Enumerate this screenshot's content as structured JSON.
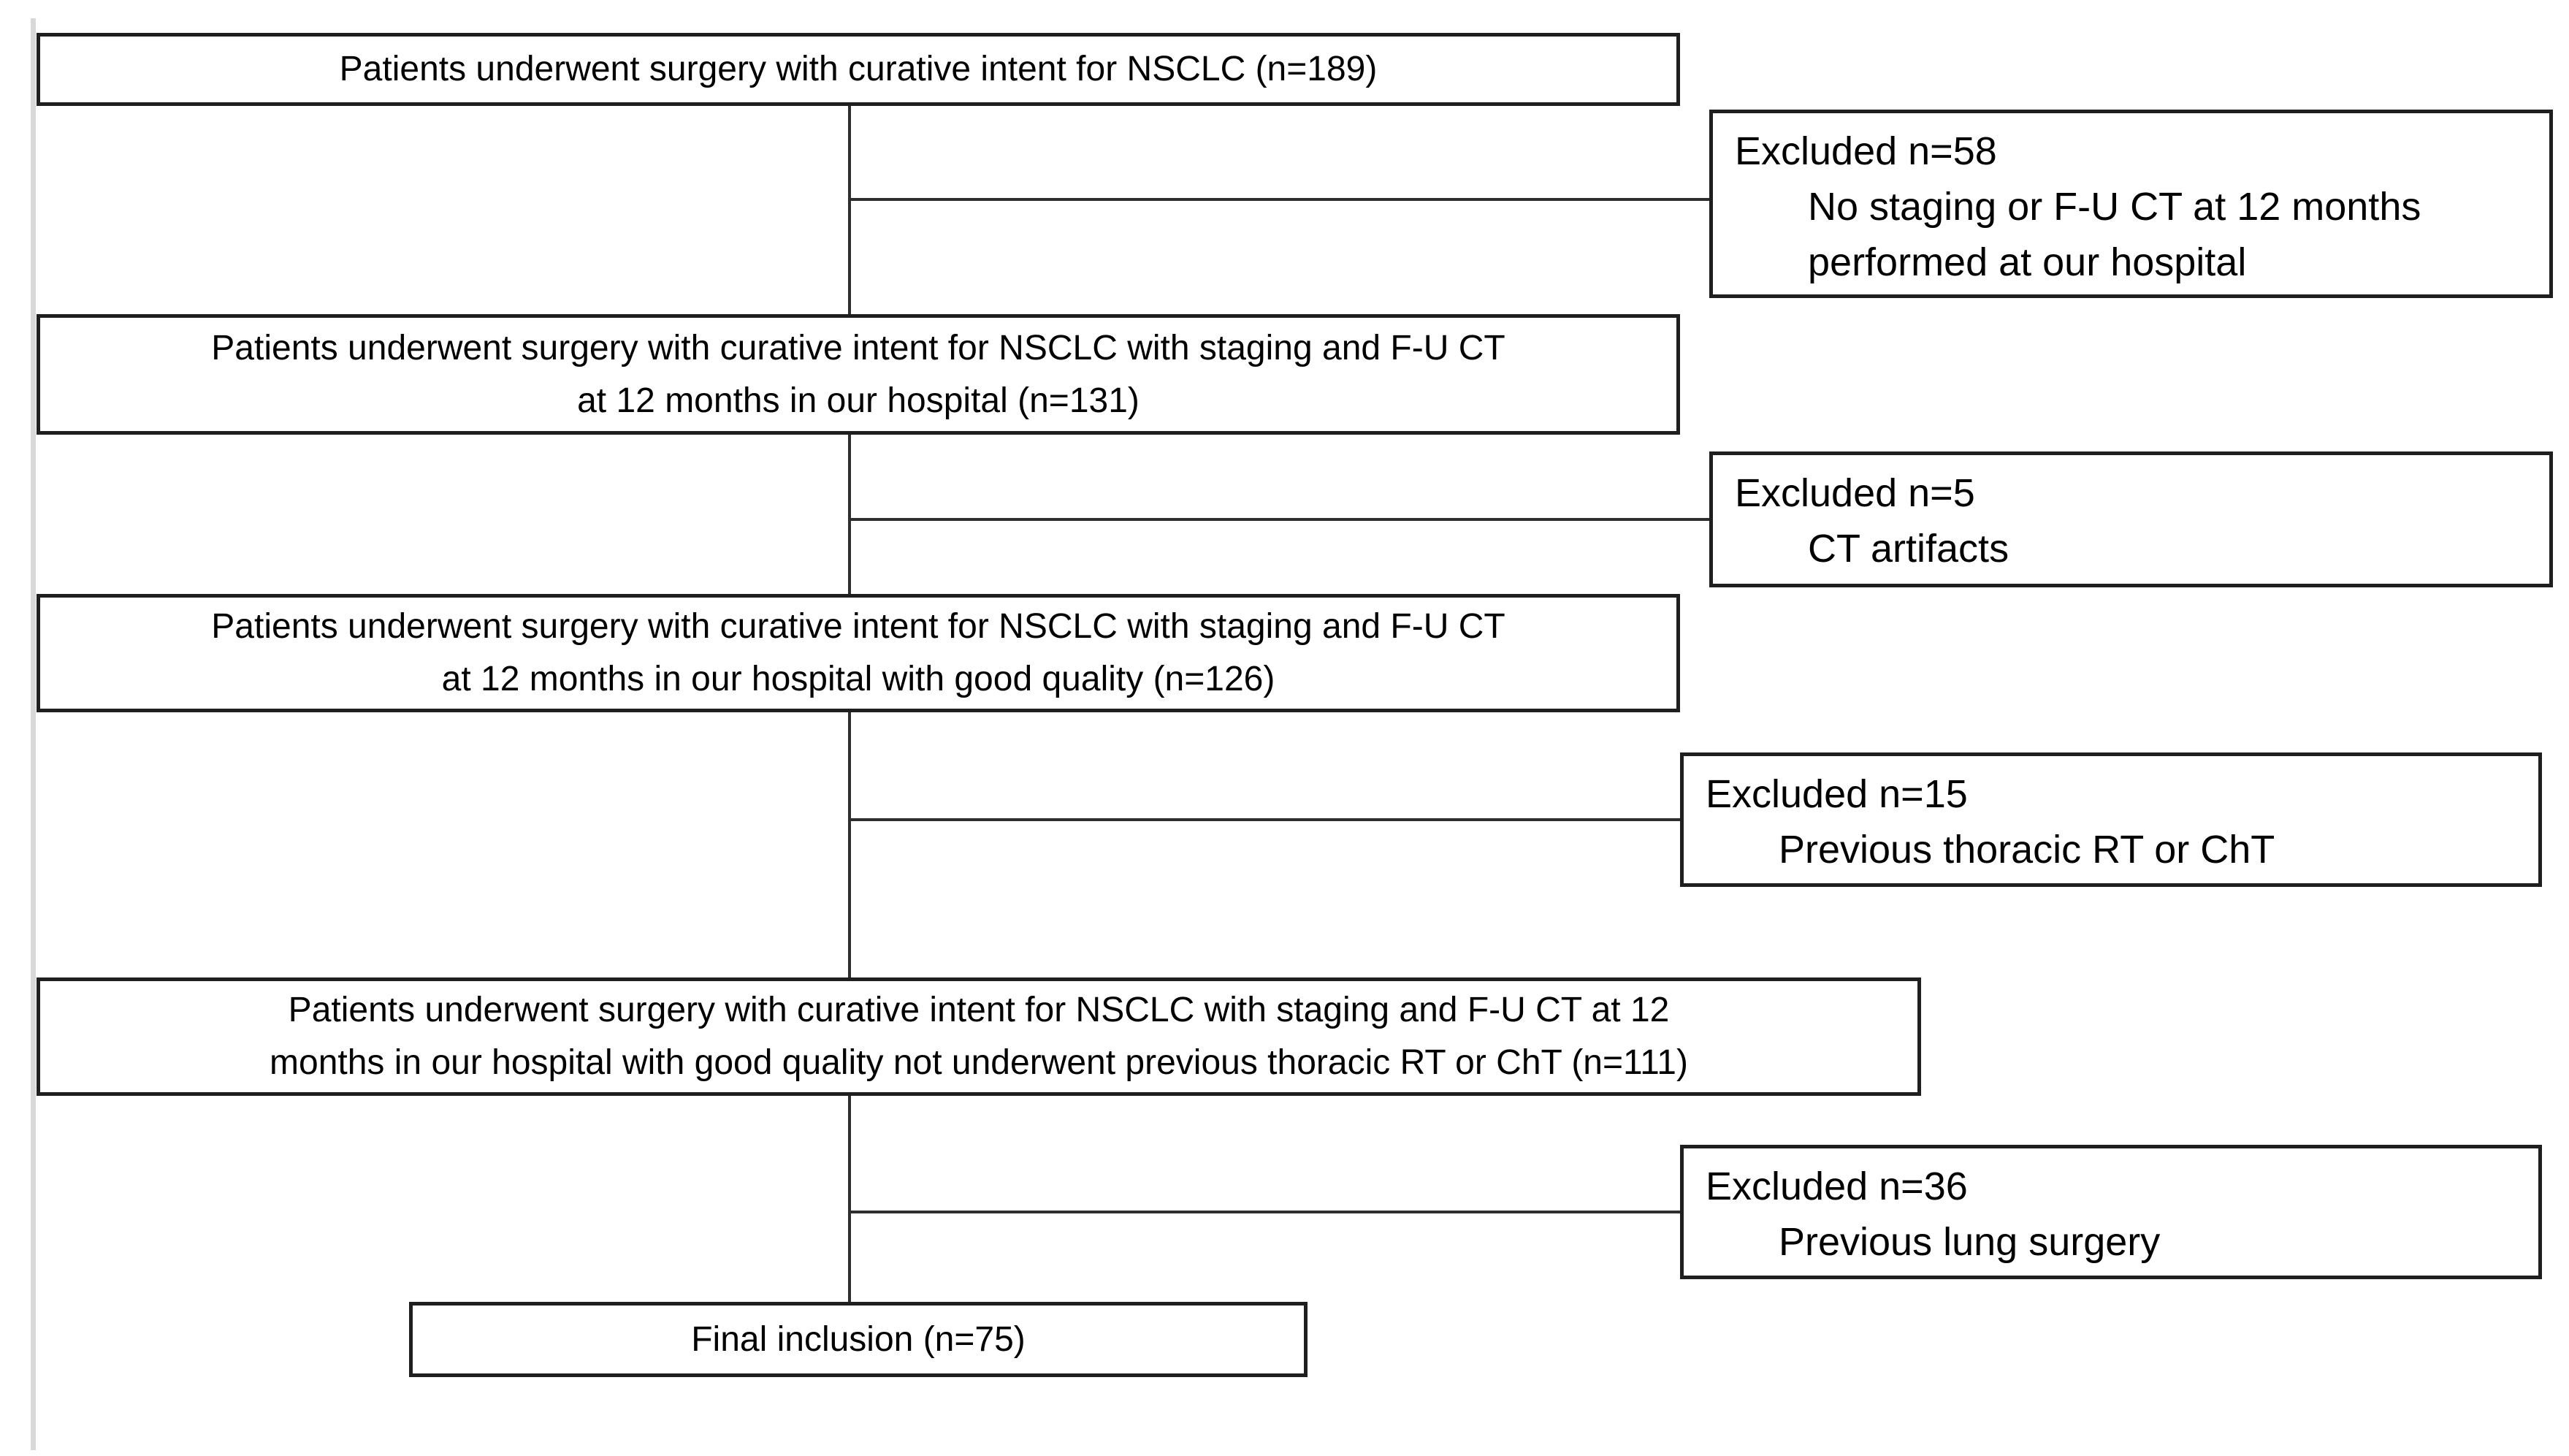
{
  "flowchart": {
    "main_boxes": [
      {
        "lines": [
          "Patients underwent surgery with curative intent for NSCLC (n=189)"
        ],
        "n": 189
      },
      {
        "lines": [
          "Patients underwent surgery with curative intent for NSCLC with staging and F-U CT",
          "at 12 months in our hospital (n=131)"
        ],
        "n": 131
      },
      {
        "lines": [
          "Patients underwent surgery with curative intent for NSCLC with staging and F-U CT",
          "at 12 months in our hospital with good quality (n=126)"
        ],
        "n": 126
      },
      {
        "lines": [
          "Patients underwent surgery with curative intent for NSCLC with staging and F-U CT at 12",
          "months in our hospital with good quality not underwent previous thoracic RT or ChT (n=111)"
        ],
        "n": 111
      },
      {
        "lines": [
          "Final inclusion (n=75)"
        ],
        "n": 75
      }
    ],
    "exclusion_boxes": [
      {
        "label": "Excluded n=58",
        "reason_lines": [
          "No staging or F-U CT at 12 months",
          "performed at our hospital"
        ],
        "n": 58
      },
      {
        "label": "Excluded n=5",
        "reason_lines": [
          "CT artifacts"
        ],
        "n": 5
      },
      {
        "label": "Excluded n=15",
        "reason_lines": [
          "Previous thoracic RT or ChT"
        ],
        "n": 15
      },
      {
        "label": "Excluded n=36",
        "reason_lines": [
          "Previous lung surgery"
        ],
        "n": 36
      }
    ],
    "colors": {
      "box_border": "#1f1f1f",
      "connector": "#2e2e2e",
      "text": "#000000",
      "background": "#ffffff",
      "left_rule": "#d8d8d8"
    }
  }
}
